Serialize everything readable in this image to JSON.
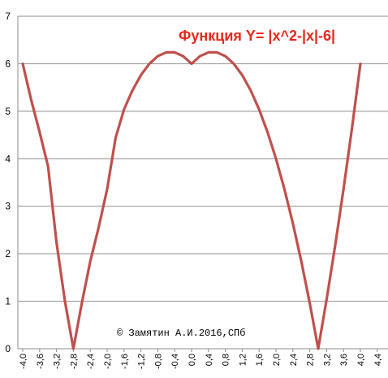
{
  "chart_data": {
    "type": "line",
    "title": "Функция Y= |x^2-|x|-6|",
    "annotation": "© Замятин А.И.2016,СПб",
    "xlabel": "",
    "ylabel": "",
    "xlim": [
      -4.0,
      4.5
    ],
    "ylim": [
      0,
      7
    ],
    "grid": true,
    "y_ticks": [
      "0",
      "1",
      "2",
      "3",
      "4",
      "5",
      "6",
      "7"
    ],
    "x_ticks": [
      "-4,0",
      "-3,6",
      "-3,2",
      "-2,8",
      "-2,4",
      "-2,0",
      "-1,6",
      "-1,2",
      "-0,8",
      "-0,4",
      "0,0",
      "0,4",
      "0,8",
      "1,2",
      "1,6",
      "2,0",
      "2,4",
      "2,8",
      "3,2",
      "3,6",
      "4,0",
      "4,4"
    ],
    "series": [
      {
        "color": "#c0504d",
        "x": [
          -4.0,
          -3.8,
          -3.6,
          -3.4,
          -3.2,
          -3.0,
          -2.8,
          -2.6,
          -2.4,
          -2.2,
          -2.0,
          -1.8,
          -1.6,
          -1.4,
          -1.2,
          -1.0,
          -0.8,
          -0.6,
          -0.4,
          -0.2,
          0.0,
          0.2,
          0.4,
          0.6,
          0.8,
          1.0,
          1.2,
          1.4,
          1.6,
          1.8,
          2.0,
          2.2,
          2.4,
          2.6,
          2.8,
          3.0,
          3.2,
          3.4,
          3.6,
          3.8,
          4.0
        ],
        "y": [
          6.0,
          5.24,
          4.56,
          3.84,
          2.24,
          1.0,
          0.0,
          0.96,
          1.84,
          2.56,
          3.36,
          4.44,
          5.04,
          5.44,
          5.76,
          6.0,
          6.16,
          6.24,
          6.24,
          6.16,
          6.0,
          6.16,
          6.24,
          6.24,
          6.16,
          6.0,
          5.76,
          5.44,
          5.04,
          4.56,
          4.0,
          3.36,
          2.64,
          1.84,
          0.96,
          0.0,
          1.04,
          2.16,
          3.36,
          4.64,
          6.0
        ]
      }
    ]
  }
}
